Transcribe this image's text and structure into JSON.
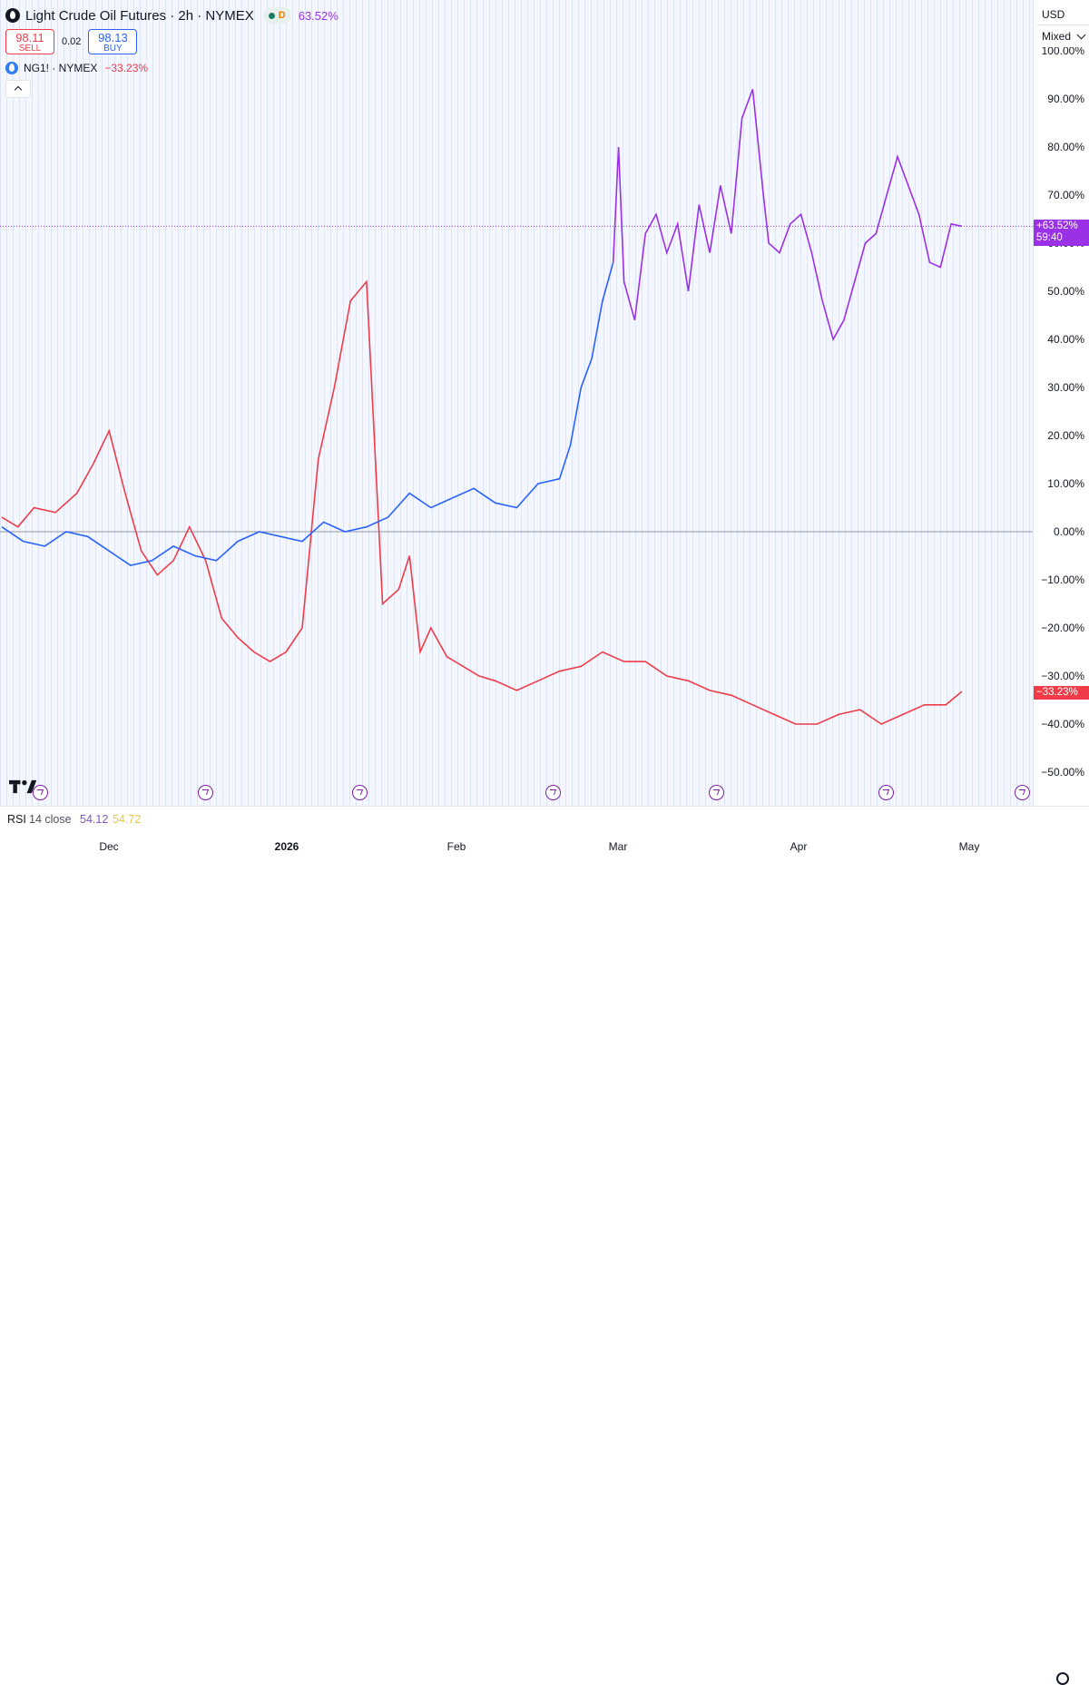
{
  "header": {
    "title": "Light Crude Oil Futures · 2h · NYMEX",
    "status_letter": "D",
    "change": "63.52%",
    "sell_price": "98.11",
    "sell_label": "SELL",
    "spread": "0.02",
    "buy_price": "98.13",
    "buy_label": "BUY",
    "compare_symbol": "NG1! · NYMEX",
    "compare_change": "−33.23%"
  },
  "price_scale": {
    "currency": "USD",
    "mode": "Mixed",
    "ticks": [
      "100.00%",
      "90.00%",
      "80.00%",
      "70.00%",
      "60.00%",
      "50.00%",
      "40.00%",
      "30.00%",
      "20.00%",
      "10.00%",
      "0.00%",
      "−10.00%",
      "−20.00%",
      "−30.00%",
      "−40.00%",
      "−50.00%"
    ],
    "main_badge_value": "+63.52%",
    "main_badge_timer": "59:40",
    "ng_badge_value": "−33.23%"
  },
  "rsi": {
    "label": "RSI",
    "params": "14 close",
    "value1": "54.12",
    "value2": "54.72"
  },
  "time_axis": {
    "labels": [
      "Dec",
      "2026",
      "Feb",
      "Mar",
      "Apr",
      "May"
    ]
  },
  "colors": {
    "primary": "#2962ff",
    "primary_after": "#9b31e6",
    "compare": "#ef3c48",
    "grid": "#dde5fb"
  },
  "icons": [
    "tradingview-logo-icon",
    "event-icon",
    "settings-icon",
    "chevron-down-icon",
    "chevron-up-icon"
  ],
  "chart_data": {
    "type": "line",
    "xlabel": "",
    "ylabel": "",
    "ylim": [
      -52,
      102
    ],
    "y_unit": "%",
    "x_ticks": [
      "Dec",
      "2026",
      "Feb",
      "Mar",
      "Apr",
      "May"
    ],
    "grid": true,
    "series": [
      {
        "name": "Light Crude Oil Futures",
        "x": [
          "2025-11-14",
          "2025-11-18",
          "2025-11-22",
          "2025-11-26",
          "2025-11-30",
          "2025-12-04",
          "2025-12-08",
          "2025-12-12",
          "2025-12-16",
          "2025-12-20",
          "2025-12-24",
          "2025-12-28",
          "2026-01-01",
          "2026-01-05",
          "2026-01-09",
          "2026-01-13",
          "2026-01-17",
          "2026-01-21",
          "2026-01-25",
          "2026-01-29",
          "2026-02-02",
          "2026-02-06",
          "2026-02-10",
          "2026-02-14",
          "2026-02-18",
          "2026-02-22",
          "2026-02-26",
          "2026-02-28",
          "2026-03-02",
          "2026-03-04",
          "2026-03-06",
          "2026-03-08",
          "2026-03-09",
          "2026-03-10",
          "2026-03-12",
          "2026-03-14",
          "2026-03-16",
          "2026-03-18",
          "2026-03-20",
          "2026-03-22",
          "2026-03-24",
          "2026-03-26",
          "2026-03-28",
          "2026-03-30",
          "2026-04-01",
          "2026-04-03",
          "2026-04-05",
          "2026-04-06",
          "2026-04-08",
          "2026-04-10",
          "2026-04-12",
          "2026-04-14",
          "2026-04-16",
          "2026-04-18",
          "2026-04-20",
          "2026-04-22",
          "2026-04-24",
          "2026-04-26",
          "2026-04-28",
          "2026-04-30",
          "2026-05-02",
          "2026-05-04",
          "2026-05-06",
          "2026-05-08",
          "2026-05-10",
          "2026-05-12"
        ],
        "y": [
          1,
          -2,
          -3,
          0,
          -1,
          -4,
          -7,
          -6,
          -3,
          -5,
          -6,
          -2,
          0,
          -1,
          -2,
          2,
          0,
          1,
          3,
          8,
          5,
          7,
          9,
          6,
          5,
          10,
          11,
          18,
          30,
          36,
          48,
          56,
          80,
          52,
          44,
          62,
          66,
          58,
          64,
          50,
          68,
          58,
          72,
          62,
          86,
          92,
          70,
          60,
          58,
          64,
          66,
          58,
          48,
          40,
          44,
          52,
          60,
          62,
          70,
          78,
          72,
          66,
          56,
          55,
          64,
          63.52
        ]
      },
      {
        "name": "NG1! · NYMEX",
        "x": [
          "2025-11-14",
          "2025-11-17",
          "2025-11-20",
          "2025-11-24",
          "2025-11-28",
          "2025-12-01",
          "2025-12-04",
          "2025-12-07",
          "2025-12-10",
          "2025-12-13",
          "2025-12-16",
          "2025-12-19",
          "2025-12-22",
          "2025-12-25",
          "2025-12-28",
          "2025-12-31",
          "2026-01-03",
          "2026-01-06",
          "2026-01-09",
          "2026-01-12",
          "2026-01-15",
          "2026-01-18",
          "2026-01-21",
          "2026-01-24",
          "2026-01-27",
          "2026-01-29",
          "2026-01-31",
          "2026-02-02",
          "2026-02-05",
          "2026-02-08",
          "2026-02-11",
          "2026-02-14",
          "2026-02-18",
          "2026-02-22",
          "2026-02-26",
          "2026-03-02",
          "2026-03-06",
          "2026-03-10",
          "2026-03-14",
          "2026-03-18",
          "2026-03-22",
          "2026-03-26",
          "2026-03-30",
          "2026-04-03",
          "2026-04-07",
          "2026-04-11",
          "2026-04-15",
          "2026-04-19",
          "2026-04-23",
          "2026-04-27",
          "2026-05-01",
          "2026-05-05",
          "2026-05-09",
          "2026-05-12"
        ],
        "y": [
          3,
          1,
          5,
          4,
          8,
          14,
          21,
          8,
          -4,
          -9,
          -6,
          1,
          -6,
          -18,
          -22,
          -25,
          -27,
          -25,
          -20,
          15,
          30,
          48,
          52,
          -15,
          -12,
          -5,
          -25,
          -20,
          -26,
          -28,
          -30,
          -31,
          -33,
          -31,
          -29,
          -28,
          -25,
          -27,
          -27,
          -30,
          -31,
          -33,
          -34,
          -36,
          -38,
          -40,
          -40,
          -38,
          -37,
          -40,
          -38,
          -36,
          -36,
          -33.23
        ]
      }
    ]
  }
}
